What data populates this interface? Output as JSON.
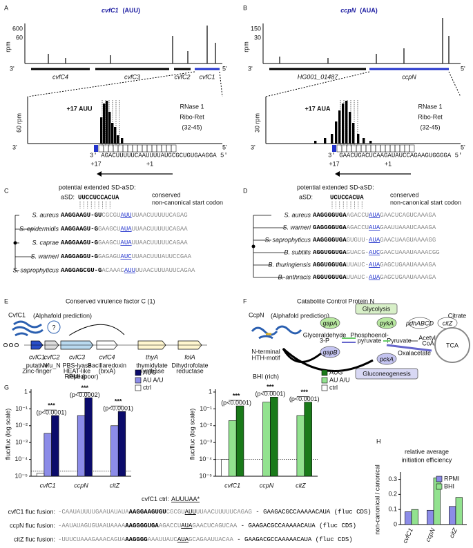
{
  "panel_labels": [
    "A",
    "B",
    "C",
    "D",
    "E",
    "F",
    "G",
    "H"
  ],
  "panel_a": {
    "gene": "cvfC1",
    "codon": "(AUU)",
    "ylabel": "rpm",
    "yticks": [
      "600",
      "60"
    ],
    "end_left": "3'",
    "end_right": "5'",
    "genes": [
      "cvfC4",
      "cvfC3",
      "cvfC2",
      "cvfC1"
    ],
    "zoom_ylabel": "60 rpm",
    "zoom_label": "+17 AUU",
    "method": [
      "RNase 1",
      "Ribo-Ret",
      "(32-45)"
    ],
    "sequence": "3' AGACUUUUUCAAUUUUAUGCGCUGUGAAGGA 5'",
    "positions": [
      "+17",
      "+1"
    ]
  },
  "panel_b": {
    "gene": "ccpN",
    "codon": "(AUA)",
    "ylabel": "rpm",
    "yticks": [
      "150",
      "30"
    ],
    "end_left": "3'",
    "end_right": "5'",
    "genes": [
      "HG001_01487",
      "ccpN"
    ],
    "zoom_ylabel": "30 rpm",
    "zoom_label": "+17 AUA",
    "method": [
      "RNase 1",
      "Ribo-Ret",
      "(32-45)"
    ],
    "sequence": "3' GAACUGACUCAAGAUAUCCAGAAGUGGGGA 5'",
    "positions": [
      "+17",
      "+1"
    ]
  },
  "panel_c": {
    "header": "potential extended SD-aSD:",
    "asd_label": "aSD:",
    "asd": "UUCCUCCACUA",
    "conserved": [
      "conserved",
      "non-canonical start codon"
    ],
    "rows": [
      {
        "species": "S. aureus",
        "segments": [
          "AAGGAAGU-GU",
          "CGCGU",
          "AUU",
          "UUAACUUUUUCAGAG"
        ]
      },
      {
        "species": "S. epidermidis",
        "segments": [
          "AAGGAAGU-G",
          "GAAGCU",
          "AUA",
          "UUAACUUUUUCAGAA"
        ]
      },
      {
        "species": "S. caprae",
        "segments": [
          "AAGGAAGU-G",
          "GAAGCU",
          "AUA",
          "UUAACUUUUUCAGAA"
        ]
      },
      {
        "species": "S. warneri",
        "segments": [
          "AAGGAGGU-G",
          "GAGAGU",
          "AUC",
          "UUAACUUUAUUCCGAA"
        ]
      },
      {
        "species": "S. saprophyticus",
        "segments": [
          "AAGGAGCGU-G",
          "ACAAAC",
          "AUU",
          "UUAACUUUAUUCAGAA"
        ]
      }
    ]
  },
  "panel_d": {
    "header": "potential extended SD-aSD:",
    "asd_label": "aSD:",
    "asd": "UCUCCACUA",
    "conserved": [
      "conserved",
      "non-canonical start codon"
    ],
    "rows": [
      {
        "species": "S. aureus",
        "segments": [
          "AAGGGGUGA",
          "AGACCU",
          "AUA",
          "GAACUCAGUCAAAGA"
        ]
      },
      {
        "species": "S. warneri",
        "segments": [
          "GAGGGGUGA",
          "AGACCU",
          "AUA",
          "GAAUUAAAUCAAAGA"
        ]
      },
      {
        "species": "S. saprophyticus",
        "segments": [
          "AAGGGGUGA",
          "GUGUU-",
          "AUA",
          "GAACUAAGUAAAAGG"
        ]
      },
      {
        "species": "B. subtilis",
        "segments": [
          "AGGUGGUGA",
          "GUACG-",
          "AUC",
          "GAACUAAAUAAAACGG"
        ]
      },
      {
        "species": "B. thuringiensis",
        "segments": [
          "AGGUGGUGA",
          "UUAUC-",
          "AUA",
          "GAGCUGAAUAAAAGA"
        ]
      },
      {
        "species": "B. anthracis",
        "segments": [
          "AGGUGGUGA",
          "UUAUC-",
          "AUA",
          "GAGCUGAAUAAAAGA"
        ]
      }
    ]
  },
  "panel_e": {
    "title": "Conserved virulence factor C (1)",
    "protein": "CvfC1",
    "note": "(Alphafold prediction)",
    "question": "?",
    "genes": [
      "cvfC1",
      "cvfC2",
      "cvfC3",
      "cvfC4",
      "thyA",
      "folA"
    ],
    "annotations": [
      [
        "putative",
        "Zinc-finger"
      ],
      [
        "Nfu_N"
      ],
      [
        "PBS-lyase",
        "HEAT-like",
        "repeat"
      ],
      [
        "Bacillaredoxin",
        "(brxA)"
      ],
      [
        "thymidylate",
        "synthase"
      ],
      [
        "Dihydrofolate",
        "reductase"
      ]
    ]
  },
  "panel_f": {
    "title": "Catabolite Control Protein N",
    "protein": "CcpN",
    "note": "(Alphafold prediction)",
    "motif": [
      "N-terminal",
      "HTH-motif"
    ],
    "pathways": [
      "Glycolysis",
      "Gluconeogenesis"
    ],
    "genes": [
      "gapA",
      "pykA",
      "pdhABCD",
      "citZ",
      "gapB",
      "pckA"
    ],
    "metabolites": [
      [
        "Glyceraldehyde",
        "3-P"
      ],
      [
        "Phosphoenol-",
        "pyruvate"
      ],
      [
        "Pyruvate"
      ],
      [
        "Acetyl-",
        "CoA"
      ],
      [
        "Citrate"
      ],
      [
        "Oxalacetate"
      ]
    ],
    "cycle": "TCA"
  },
  "panel_g": {
    "ctrl_label": "cvfC1 ctrl:",
    "ctrl_codon": "AUUUAA*",
    "rows": [
      {
        "name": "cvfC1 fluc fusion:",
        "segments": [
          "-CAAUAUUUUGAAUAUAUA",
          "AAGGAAGUGU",
          "CGCGU",
          "AUU",
          "UUAACUUUUUCAGAG",
          " - GAAGACGCCAAAAACAUA (fluc CDS)"
        ]
      },
      {
        "name": "ccpN fluc fusion:",
        "segments": [
          "-AAUAUAGUGUAAUAAAA",
          "AAGGGGUGA",
          "AGACCU",
          "AUA",
          "GAACUCAGUCAA",
          " - GAAGACGCCAAAAACAUA (fluc CDS)"
        ]
      },
      {
        "name": "citZ fluc fusion:",
        "segments": [
          "-UUUCUAAAGAAACAGUA",
          "AAGGGG",
          "AAAUUAUC",
          "AUA",
          "GCAGAAUUACAA",
          " - GAAGACGCCAAAAACAUA (fluc CDS)"
        ]
      }
    ]
  },
  "chart_data": [
    {
      "type": "bar",
      "title": "RPMI (poor)",
      "ylabel": "fluc/fluc (log scale)",
      "log": true,
      "categories": [
        "cvfC1",
        "ccpN",
        "citZ"
      ],
      "series": [
        {
          "name": "AUG",
          "color": "#0b0b6b",
          "values": [
            0.04,
            0.45,
            0.07
          ]
        },
        {
          "name": "AU A/U",
          "color": "#8c8ce8",
          "values": [
            0.0035,
            0.04,
            0.01
          ]
        },
        {
          "name": "ctrl",
          "color": "#ffffff",
          "values": [
            1.5e-05,
            null,
            null
          ]
        }
      ],
      "significance": [
        "***",
        "***",
        "***"
      ],
      "p_values": [
        "(p<0.0001)",
        "(p<0.0002)",
        "(p<0.0001)"
      ],
      "threshold": 2e-05,
      "ylim": [
        1e-05,
        1
      ],
      "yticks": [
        {
          "value": 1e-05,
          "label": "10⁻⁵"
        },
        {
          "value": 0.0001,
          "label": "10⁻⁴"
        },
        {
          "value": 0.001,
          "label": "10⁻³"
        },
        {
          "value": 0.01,
          "label": "10⁻²"
        },
        {
          "value": 0.1,
          "label": "10⁻¹"
        },
        1
      ]
    },
    {
      "type": "bar",
      "title": "BHI (rich)",
      "ylabel": "fluc/fluc (log scale)",
      "log": true,
      "categories": [
        "cvfC1",
        "ccpN",
        "citZ"
      ],
      "series": [
        {
          "name": "AUG",
          "color": "#1a7a1a",
          "values": [
            0.15,
            0.5,
            0.25
          ]
        },
        {
          "name": "AU A/U",
          "color": "#92e28f",
          "values": [
            0.02,
            0.25,
            0.04
          ]
        },
        {
          "name": "ctrl",
          "color": "#ffffff",
          "values": [
            0.0001,
            null,
            null
          ]
        }
      ],
      "significance": [
        "***",
        "***",
        "***"
      ],
      "p_values": [
        "(p<0.0001)",
        "(p<0.0001)",
        "(p<0.0001)"
      ],
      "threshold": 0.0001,
      "ylim": [
        1e-05,
        1
      ],
      "yticks": [
        {
          "value": 1e-05,
          "label": "10⁻⁵"
        },
        {
          "value": 0.0001,
          "label": "10⁻⁴"
        },
        {
          "value": 0.001,
          "label": "10⁻³"
        },
        {
          "value": 0.01,
          "label": "10⁻²"
        },
        {
          "value": 0.1,
          "label": "10⁻¹"
        },
        1
      ]
    },
    {
      "type": "bar",
      "title": [
        "relative average",
        "initiation efficiency"
      ],
      "ylabel": "non-canonical / canonical",
      "log": false,
      "categories": [
        "cvfC1",
        "ccpN",
        "citZ"
      ],
      "series": [
        {
          "name": "RPMI",
          "color": "#8c8ce8",
          "values": [
            0.085,
            0.095,
            0.12
          ]
        },
        {
          "name": "BHI",
          "color": "#92e28f",
          "values": [
            0.1,
            0.31,
            0.18
          ]
        }
      ],
      "ylim": [
        0,
        0.33
      ],
      "yticks": [
        0,
        0.1,
        0.2,
        0.3
      ],
      "legend": "top-right"
    }
  ]
}
